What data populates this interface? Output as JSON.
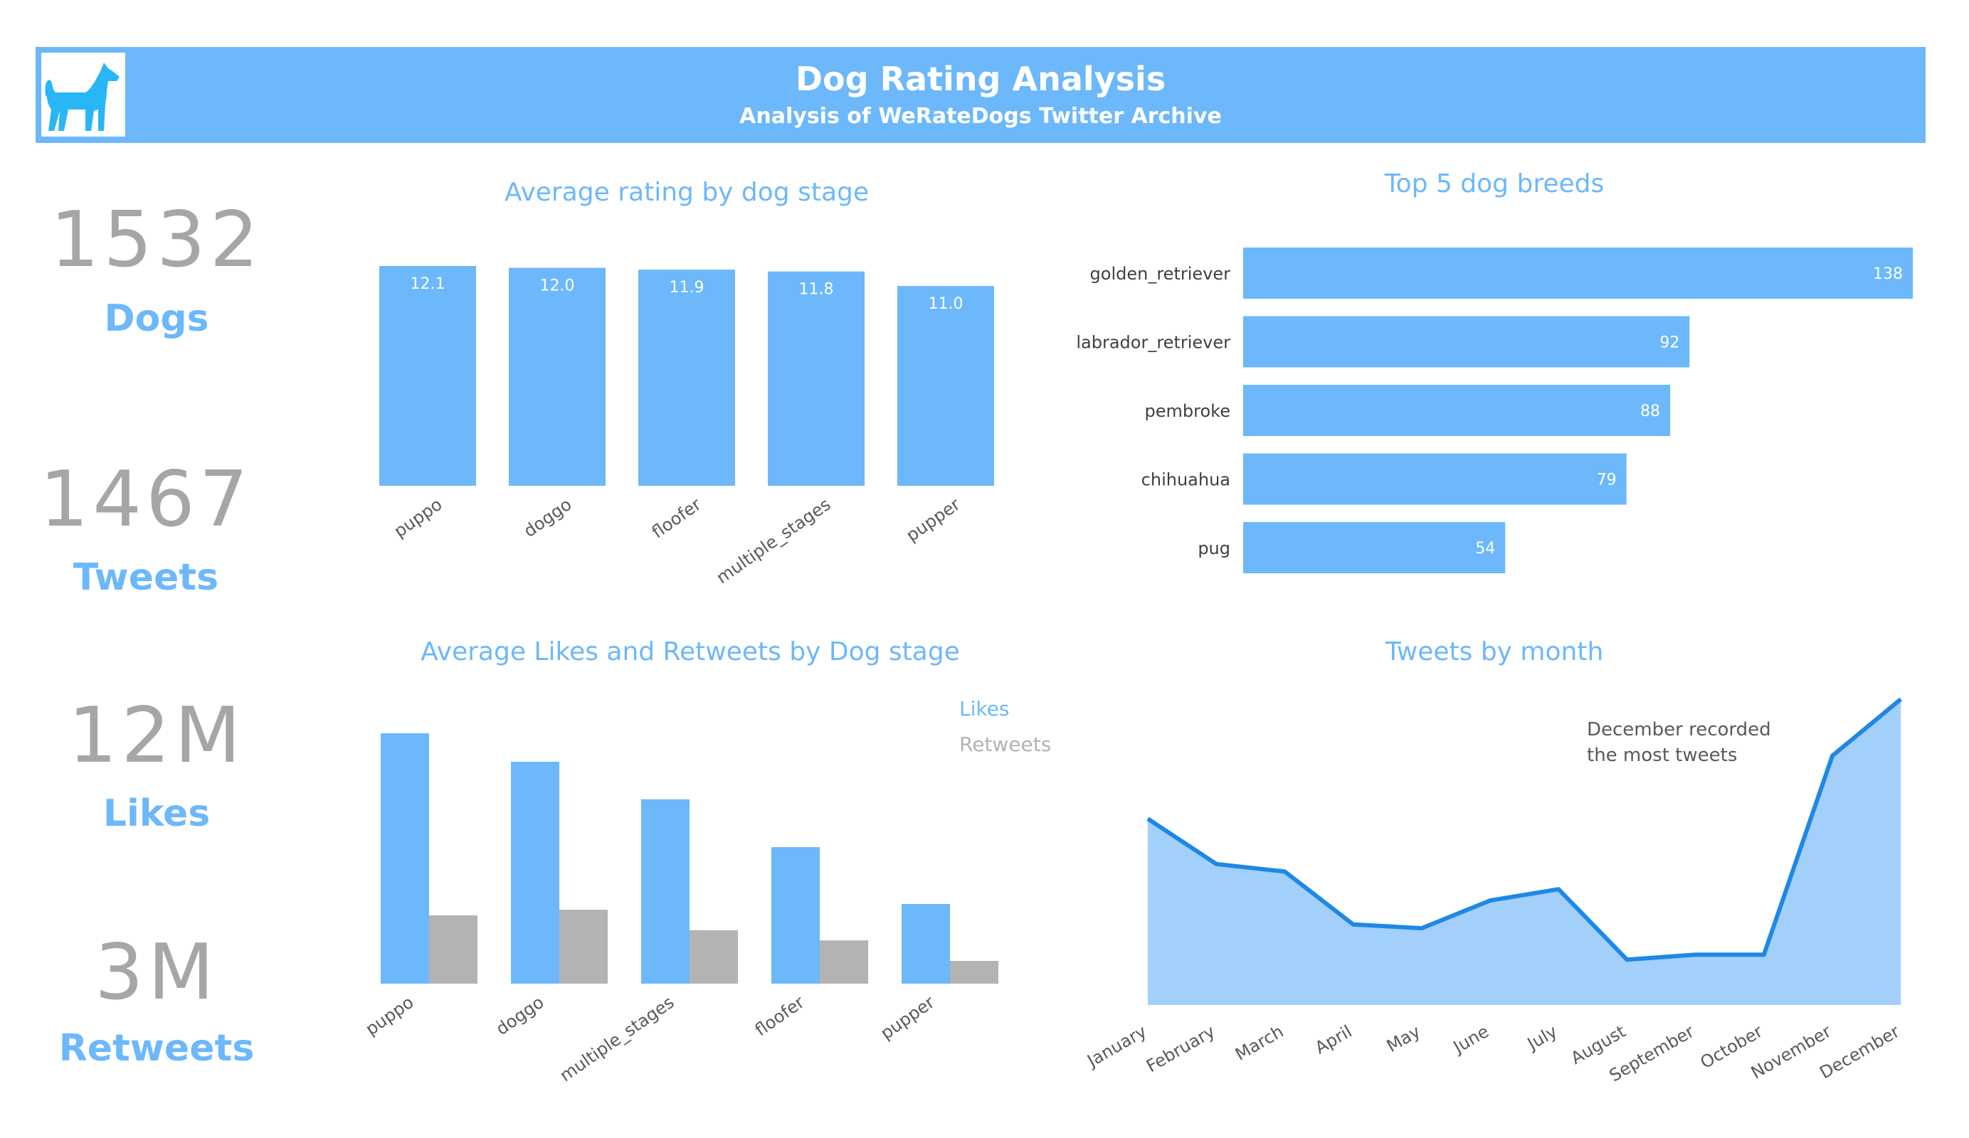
{
  "header": {
    "title": "Dog Rating Analysis",
    "subtitle": "Analysis of WeRateDogs Twitter Archive",
    "logo_icon": "dog-icon"
  },
  "kpis": [
    {
      "value": "1532",
      "label": "Dogs"
    },
    {
      "value": "1467",
      "label": "Tweets"
    },
    {
      "value": "12M",
      "label": "Likes"
    },
    {
      "value": "3M",
      "label": "Retweets"
    }
  ],
  "colors": {
    "accent": "#6cb8fb",
    "gray": "#b3b3b3",
    "line": "#1e88e5",
    "area": "#a3cffb",
    "kpi_number": "#a6a6a6"
  },
  "chart_data": [
    {
      "id": "rating",
      "type": "bar",
      "title": "Average rating by dog stage",
      "categories": [
        "puppo",
        "doggo",
        "floofer",
        "multiple_stages",
        "pupper"
      ],
      "values": [
        12.1,
        12.0,
        11.9,
        11.8,
        11.0
      ],
      "data_labels": [
        "12.1",
        "12.0",
        "11.9",
        "11.8",
        "11.0"
      ],
      "ylim": [
        0,
        12.1
      ]
    },
    {
      "id": "breeds",
      "type": "bar",
      "orientation": "horizontal",
      "title": "Top 5 dog breeds",
      "categories": [
        "golden_retriever",
        "labrador_retriever",
        "pembroke",
        "chihuahua",
        "pug"
      ],
      "values": [
        138,
        92,
        88,
        79,
        54
      ],
      "xlim": [
        0,
        138
      ]
    },
    {
      "id": "engagement",
      "type": "bar",
      "title": "Average Likes and Retweets by Dog stage",
      "categories": [
        "puppo",
        "doggo",
        "multiple_stages",
        "floofer",
        "pupper"
      ],
      "series": [
        {
          "name": "Likes",
          "values": [
            22000,
            19500,
            16200,
            12000,
            7000
          ]
        },
        {
          "name": "Retweets",
          "values": [
            6000,
            6500,
            4700,
            3800,
            2000
          ]
        }
      ],
      "ylim": [
        0,
        22000
      ],
      "legend": "top-right"
    },
    {
      "id": "monthly",
      "type": "area",
      "title": "Tweets by month",
      "x": [
        "January",
        "February",
        "March",
        "April",
        "May",
        "June",
        "July",
        "August",
        "September",
        "October",
        "November",
        "December"
      ],
      "values": [
        148,
        112,
        106,
        64,
        61,
        83,
        92,
        36,
        40,
        40,
        198,
        243
      ],
      "ylim": [
        0,
        243
      ],
      "annotation": "December recorded\nthe most tweets"
    }
  ]
}
